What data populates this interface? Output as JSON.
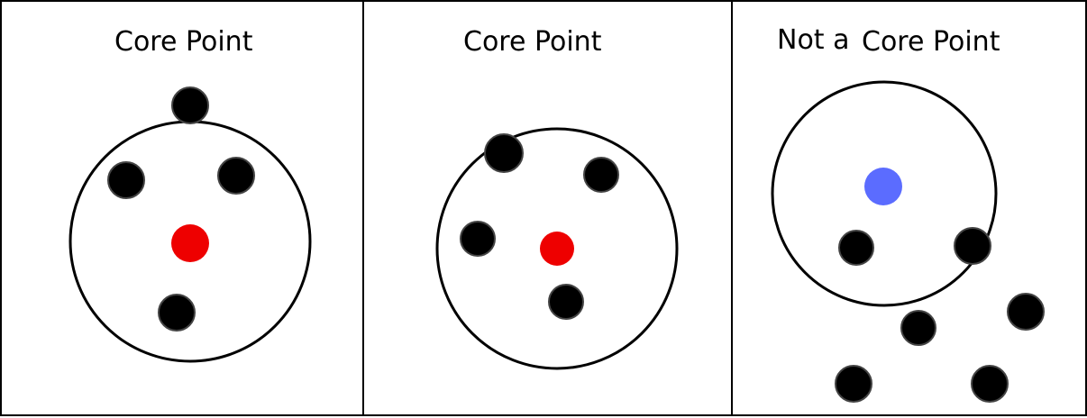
{
  "panels": [
    {
      "title": "Core Point",
      "center_color": "#ee0000",
      "neighbor_color": "#000000"
    },
    {
      "title": "Core Point",
      "center_color": "#ee0000",
      "neighbor_color": "#000000"
    },
    {
      "title_prefix": "Not a",
      "title": "Core Point",
      "center_color": "#5b6cff",
      "neighbor_color": "#000000"
    }
  ]
}
